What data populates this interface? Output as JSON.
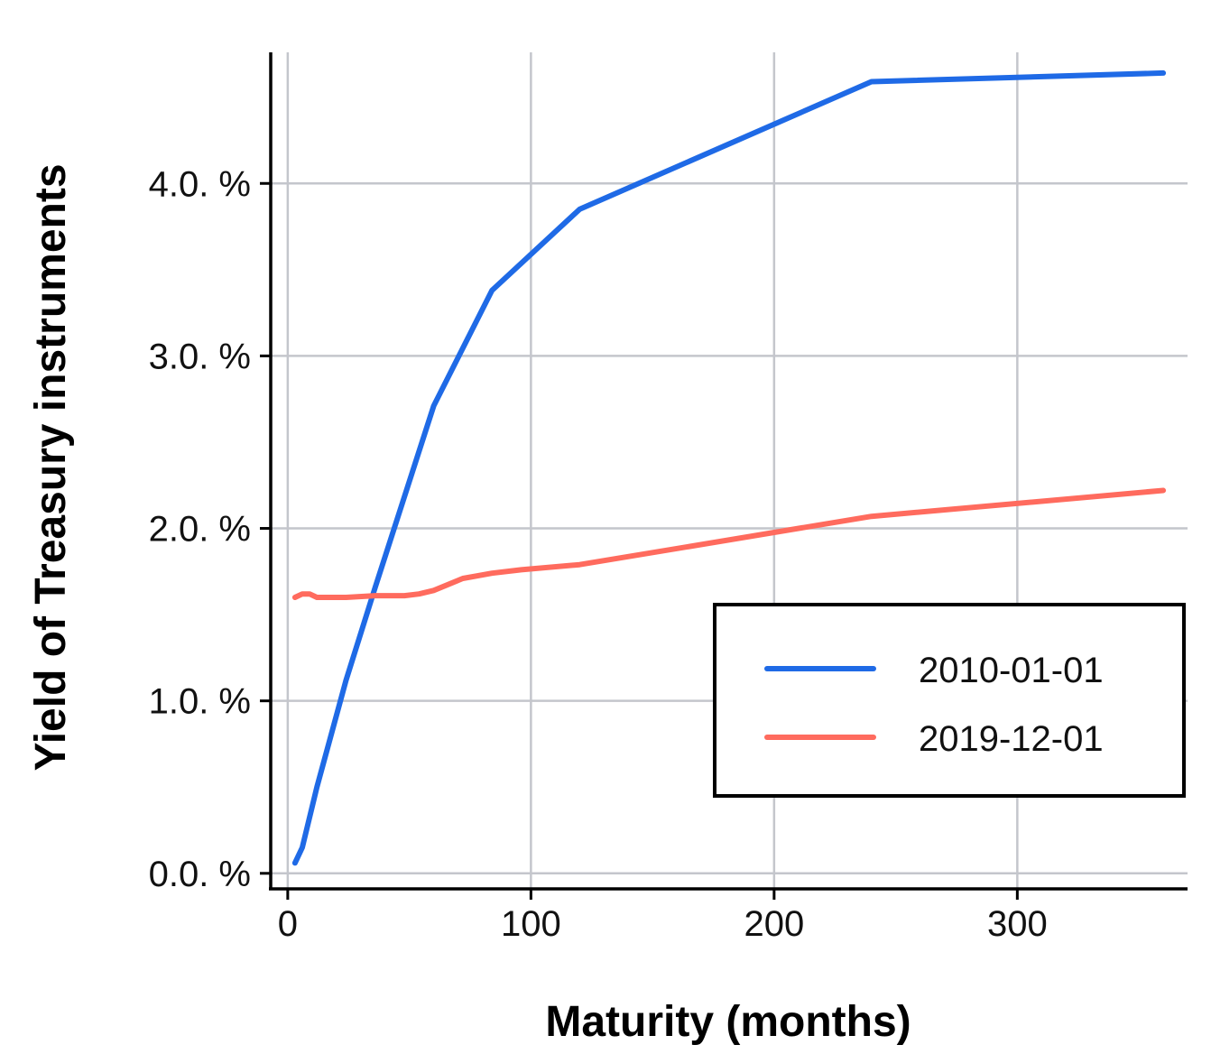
{
  "chart_data": {
    "type": "line",
    "title": "",
    "xlabel": "Maturity (months)",
    "ylabel": "Yield of Treasury instruments",
    "xlim": [
      -7,
      370
    ],
    "ylim": [
      -0.09,
      4.76
    ],
    "xticks": [
      0,
      100,
      200,
      300
    ],
    "xtick_labels": [
      "0",
      "100",
      "200",
      "300"
    ],
    "yticks": [
      0,
      1,
      2,
      3,
      4
    ],
    "ytick_labels": [
      "0.0. %",
      "1.0. %",
      "2.0. %",
      "3.0. %",
      "4.0. %"
    ],
    "grid": true,
    "legend_position": "center-right",
    "series": [
      {
        "name": "2010-01-01",
        "color": "#1f6ae6",
        "x": [
          3,
          6,
          12,
          24,
          36,
          60,
          84,
          120,
          240,
          360
        ],
        "y": [
          0.06,
          0.15,
          0.5,
          1.12,
          1.66,
          2.71,
          3.38,
          3.85,
          4.59,
          4.64
        ]
      },
      {
        "name": "2019-12-01",
        "color": "#ff6b5e",
        "x": [
          3,
          6,
          9,
          12,
          24,
          36,
          48,
          54,
          60,
          72,
          84,
          96,
          120,
          240,
          360
        ],
        "y": [
          1.6,
          1.62,
          1.62,
          1.6,
          1.6,
          1.61,
          1.61,
          1.62,
          1.64,
          1.71,
          1.74,
          1.76,
          1.79,
          2.07,
          2.22
        ]
      }
    ]
  }
}
